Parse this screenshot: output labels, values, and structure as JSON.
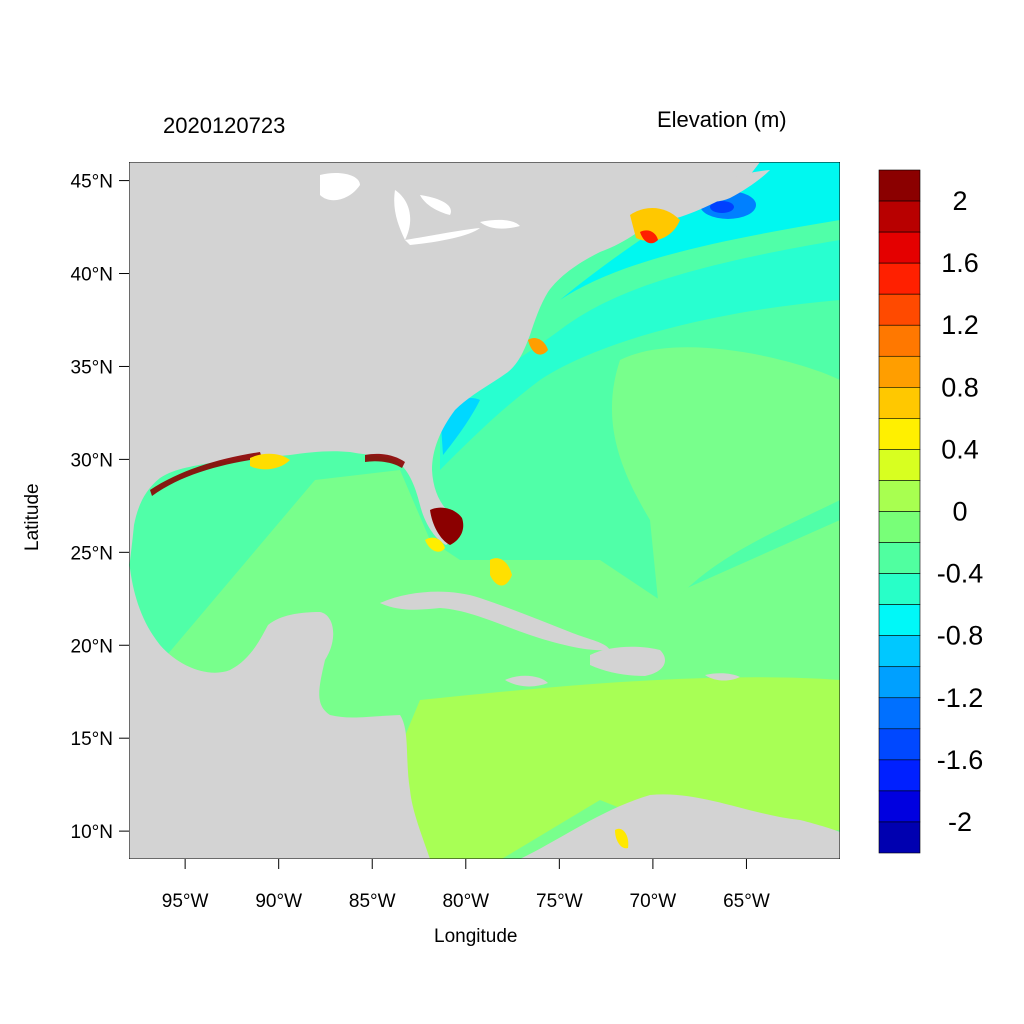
{
  "header": {
    "date": "2020120723",
    "title": "Elevation (m)"
  },
  "axes": {
    "xlabel": "Longitude",
    "ylabel": "Latitude",
    "x_ticks": [
      "95°W",
      "90°W",
      "85°W",
      "80°W",
      "75°W",
      "70°W",
      "65°W"
    ],
    "y_ticks": [
      "45°N",
      "40°N",
      "35°N",
      "30°N",
      "25°N",
      "20°N",
      "15°N",
      "10°N"
    ],
    "lon_range": [
      -98,
      -60
    ],
    "lat_range": [
      8.5,
      46
    ]
  },
  "colorbar": {
    "labels": [
      "2",
      "1.6",
      "1.2",
      "0.8",
      "0.4",
      "0",
      "-0.4",
      "-0.8",
      "-1.2",
      "-1.6",
      "-2"
    ],
    "colors_top_to_bottom": [
      "#8b0000",
      "#b80000",
      "#e40000",
      "#ff2000",
      "#ff4a00",
      "#ff7800",
      "#ff9e00",
      "#ffc800",
      "#fff000",
      "#d8ff20",
      "#a8ff50",
      "#78ff78",
      "#50ffa0",
      "#28ffc8",
      "#00f8f8",
      "#00c8ff",
      "#00a0ff",
      "#0070ff",
      "#0048ff",
      "#0020ff",
      "#0000e0",
      "#0000b0"
    ]
  },
  "colors": {
    "land": "#d3d3d3",
    "lakes": "#ffffff",
    "field_zero": "#78ff96",
    "field_neg": "#50ffb0"
  }
}
